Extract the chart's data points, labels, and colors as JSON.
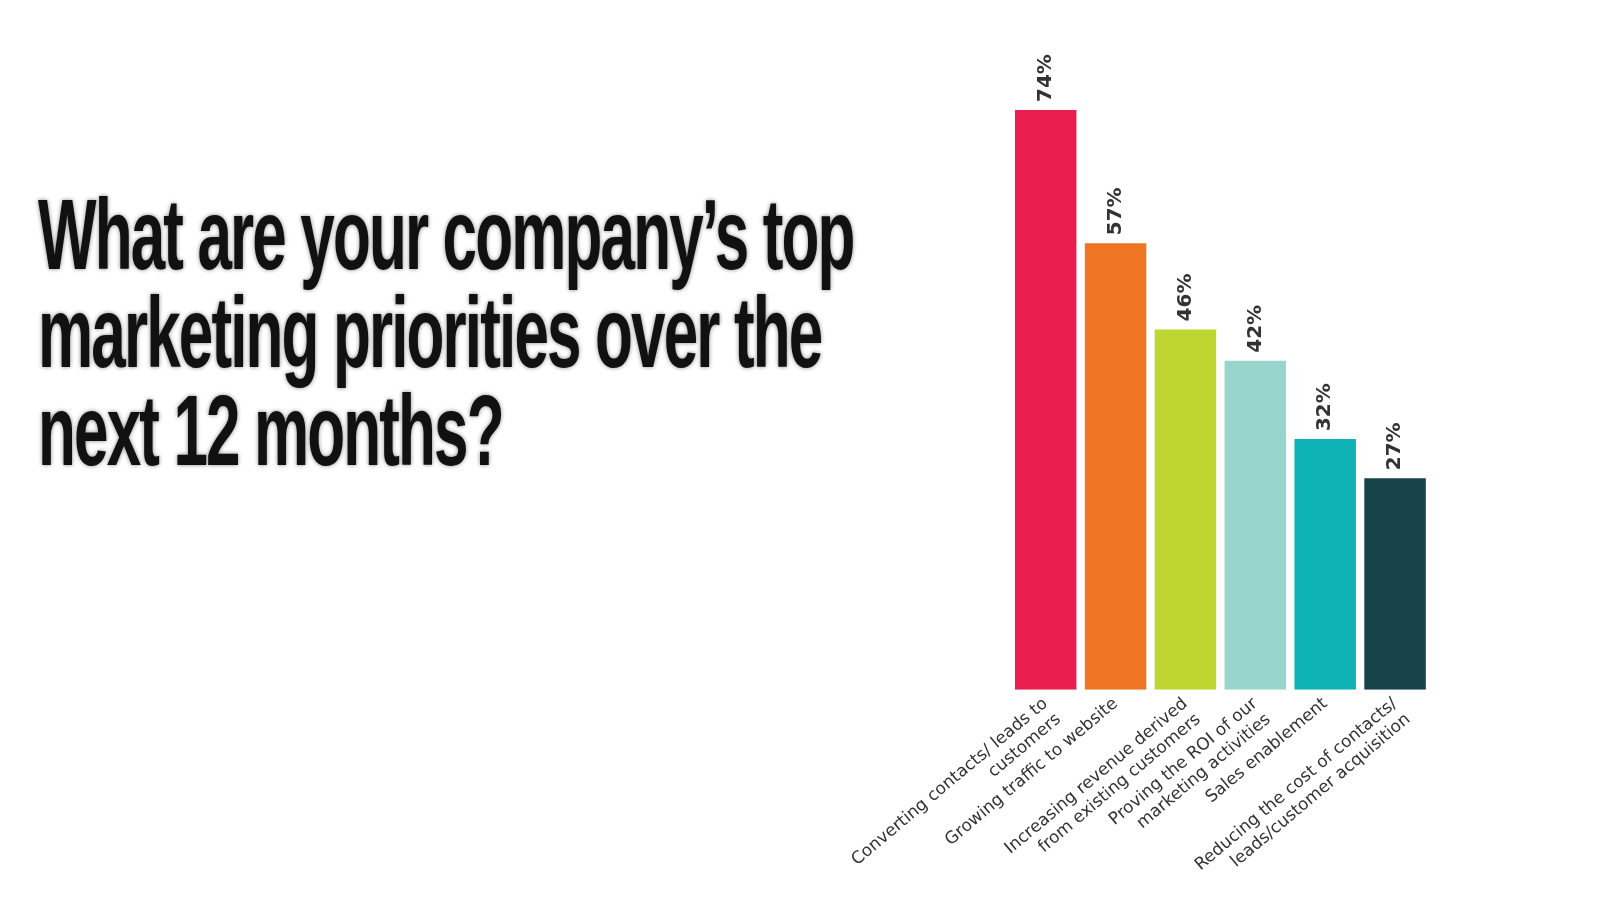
{
  "chart_data": {
    "type": "bar",
    "title": "What are your company’s top marketing priorities over the next 12 months?",
    "categories": [
      "Converting contacts/ leads to customers",
      "Growing traffic to website",
      "Increasing revenue derived from existing customers",
      "Proving the ROI of our marketing activities",
      "Sales enablement",
      "Reducing the cost of contacts/ leads/customer acquisition"
    ],
    "values": [
      74,
      57,
      46,
      42,
      32,
      27
    ],
    "colors": [
      "#e91e4e",
      "#f07522",
      "#bfd630",
      "#98d5cc",
      "#0db3b5",
      "#17434b"
    ],
    "value_labels": [
      "74%",
      "57%",
      "46%",
      "42%",
      "32%",
      "27%"
    ],
    "legend": false,
    "grid": false
  }
}
